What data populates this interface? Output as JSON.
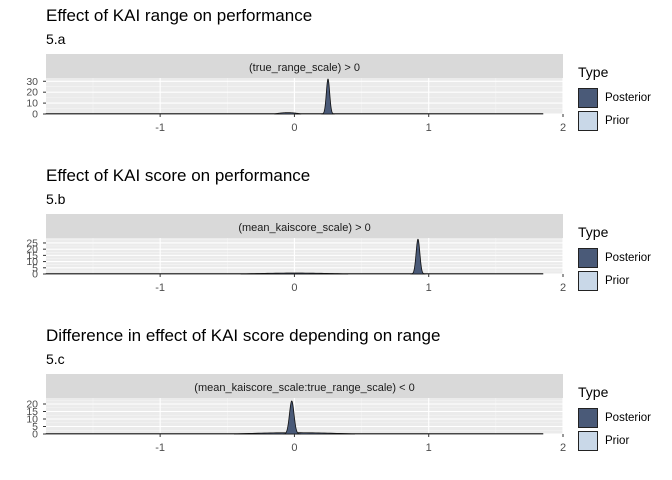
{
  "legend": {
    "title": "Type",
    "items": [
      {
        "label": "Posterior",
        "color": "#4a5a78"
      },
      {
        "label": "Prior",
        "color": "#c9d8e8"
      }
    ]
  },
  "panels": [
    {
      "title": "Effect of KAI range on performance",
      "subtitle": "5.a"
    },
    {
      "title": "Effect of KAI score on performance",
      "subtitle": "5.b"
    },
    {
      "title": "Difference in effect of KAI score depending on range",
      "subtitle": "5.c"
    }
  ],
  "chart_data": [
    {
      "type": "area",
      "title": "Effect of KAI range on performance",
      "subtitle": "5.a",
      "facet_label": "(true_range_scale) > 0",
      "xlim": [
        -1.85,
        2.0
      ],
      "ylim": [
        0,
        33
      ],
      "x_ticks": [
        -1,
        0,
        1,
        2
      ],
      "y_ticks": [
        0,
        10,
        20,
        30
      ],
      "series": [
        {
          "name": "Prior",
          "type": "uniform",
          "x_range": [
            -1.85,
            1.85
          ],
          "density": 0.27
        },
        {
          "name": "Posterior",
          "type": "density",
          "peak_x": 0.25,
          "peak_density": 32,
          "sd": 0.0125
        }
      ],
      "extra_bumps": [
        {
          "peak_x": -0.05,
          "peak_density": 1.3,
          "width": 0.1
        }
      ],
      "legend_position": "right"
    },
    {
      "type": "area",
      "title": "Effect of KAI score on performance",
      "subtitle": "5.b",
      "facet_label": "(mean_kaiscore_scale) > 0",
      "xlim": [
        -1.85,
        2.0
      ],
      "ylim": [
        0,
        29
      ],
      "x_ticks": [
        -1,
        0,
        1,
        2
      ],
      "y_ticks": [
        0,
        5,
        10,
        15,
        20,
        25
      ],
      "series": [
        {
          "name": "Prior",
          "type": "uniform",
          "x_range": [
            -1.85,
            1.85
          ],
          "density": 0.27
        },
        {
          "name": "Posterior",
          "type": "density",
          "peak_x": 0.92,
          "peak_density": 28,
          "sd": 0.014
        }
      ],
      "extra_bumps": [
        {
          "peak_x": 0.0,
          "peak_density": 0.8,
          "width": 0.4
        }
      ],
      "legend_position": "right"
    },
    {
      "type": "area",
      "title": "Difference in effect of KAI score depending on range",
      "subtitle": "5.c",
      "facet_label": "(mean_kaiscore_scale:true_range_scale) < 0",
      "xlim": [
        -1.85,
        2.0
      ],
      "ylim": [
        0,
        24
      ],
      "x_ticks": [
        -1,
        0,
        1,
        2
      ],
      "y_ticks": [
        0,
        5,
        10,
        15,
        20
      ],
      "series": [
        {
          "name": "Prior",
          "type": "uniform",
          "x_range": [
            -1.85,
            1.85
          ],
          "density": 0.27
        },
        {
          "name": "Posterior",
          "type": "density",
          "peak_x": -0.02,
          "peak_density": 22,
          "sd": 0.017
        }
      ],
      "extra_bumps": [
        {
          "peak_x": 0.0,
          "peak_density": 0.9,
          "width": 0.45
        }
      ],
      "legend_position": "right"
    }
  ]
}
